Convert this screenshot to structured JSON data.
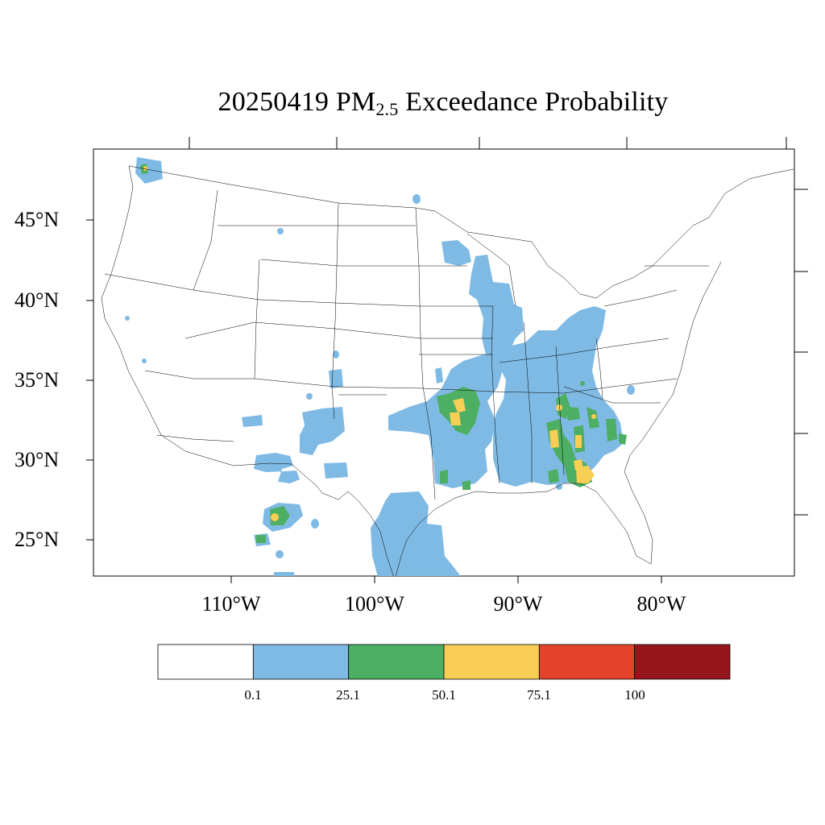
{
  "title": {
    "date": "20250419",
    "species": "PM",
    "species_sub": "2.5",
    "suffix": "Exceedance Probability"
  },
  "axes": {
    "lat_labels": [
      "45°N",
      "40°N",
      "35°N",
      "30°N",
      "25°N"
    ],
    "lon_labels": [
      "110°W",
      "100°W",
      "90°W",
      "80°W"
    ]
  },
  "colorbar": {
    "labels": [
      "0.1",
      "25.1",
      "50.1",
      "75.1",
      "100"
    ],
    "colors": [
      "#ffffff",
      "#7fbae4",
      "#4caf63",
      "#f8ce55",
      "#e24329",
      "#94161c"
    ]
  },
  "chart_data": {
    "type": "heatmap",
    "title": "20250419 PM2.5 Exceedance Probability",
    "ylim": [
      22.5,
      49.5
    ],
    "xlim": [
      -119.5,
      -73.5
    ],
    "bins": [
      {
        "range": "<0.1",
        "color": "#ffffff"
      },
      {
        "range": "0.1–25.1",
        "color": "#7fbae4"
      },
      {
        "range": "25.1–50.1",
        "color": "#4caf63"
      },
      {
        "range": "50.1–75.1",
        "color": "#f8ce55"
      },
      {
        "range": "75.1–100",
        "color": "#e24329"
      },
      {
        "range": ">100",
        "color": "#94161c"
      }
    ]
  }
}
